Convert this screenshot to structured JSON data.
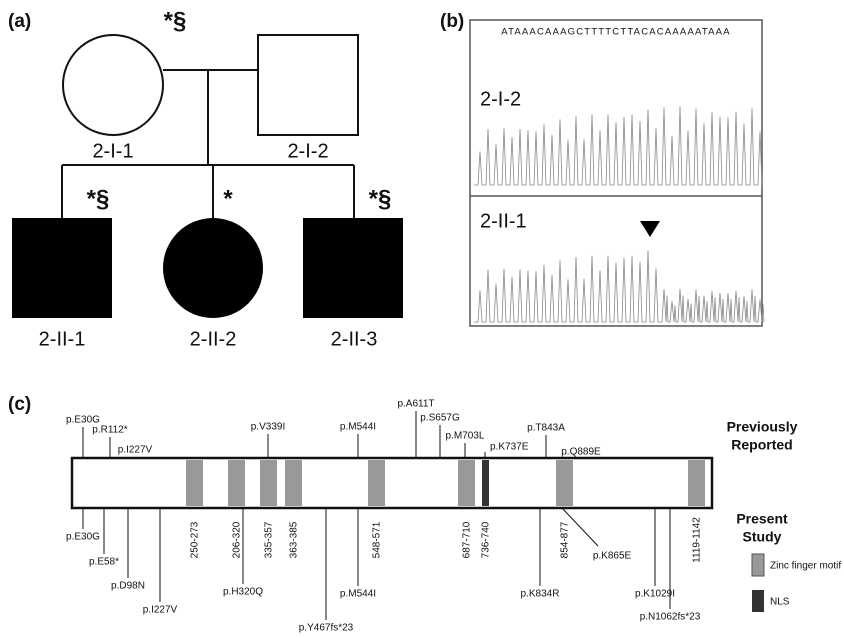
{
  "panel_a": {
    "label": "(a)",
    "individuals": [
      {
        "id": "2-I-1",
        "mark": "*§"
      },
      {
        "id": "2-I-2"
      },
      {
        "id": "2-II-1",
        "mark": "*§"
      },
      {
        "id": "2-II-2",
        "mark": "*"
      },
      {
        "id": "2-II-3",
        "mark": "*§"
      }
    ]
  },
  "panel_b": {
    "label": "(b)",
    "sequence": "ATAAACAAAGCTTTTCTTACACAAAAATAAA",
    "traces": [
      "2-I-2",
      "2-II-1"
    ]
  },
  "panel_c": {
    "label": "(c)",
    "previously_reported": "Previously Reported",
    "present_study": "Present Study",
    "domains": [
      "250-273",
      "206-320",
      "335-357",
      "363-385",
      "548-571",
      "687-710",
      "736-740",
      "854-877",
      "1119-1142"
    ],
    "top_mutations": [
      "p.E30G",
      "p.R112*",
      "p.I227V",
      "p.V339I",
      "p.M544I",
      "p.A611T",
      "p.S657G",
      "p.M703L",
      "p.K737E",
      "p.T843A",
      "p.Q889E"
    ],
    "bottom_mutations": [
      "p.E30G",
      "p.E58*",
      "p.D98N",
      "p.I227V",
      "p.H320Q",
      "p.Y467fs*23",
      "p.M544I",
      "p.K834R",
      "p.K865E",
      "p.K1029I",
      "p.N1062fs*23"
    ],
    "legend": [
      "Zinc finger motif",
      "NLS"
    ]
  }
}
